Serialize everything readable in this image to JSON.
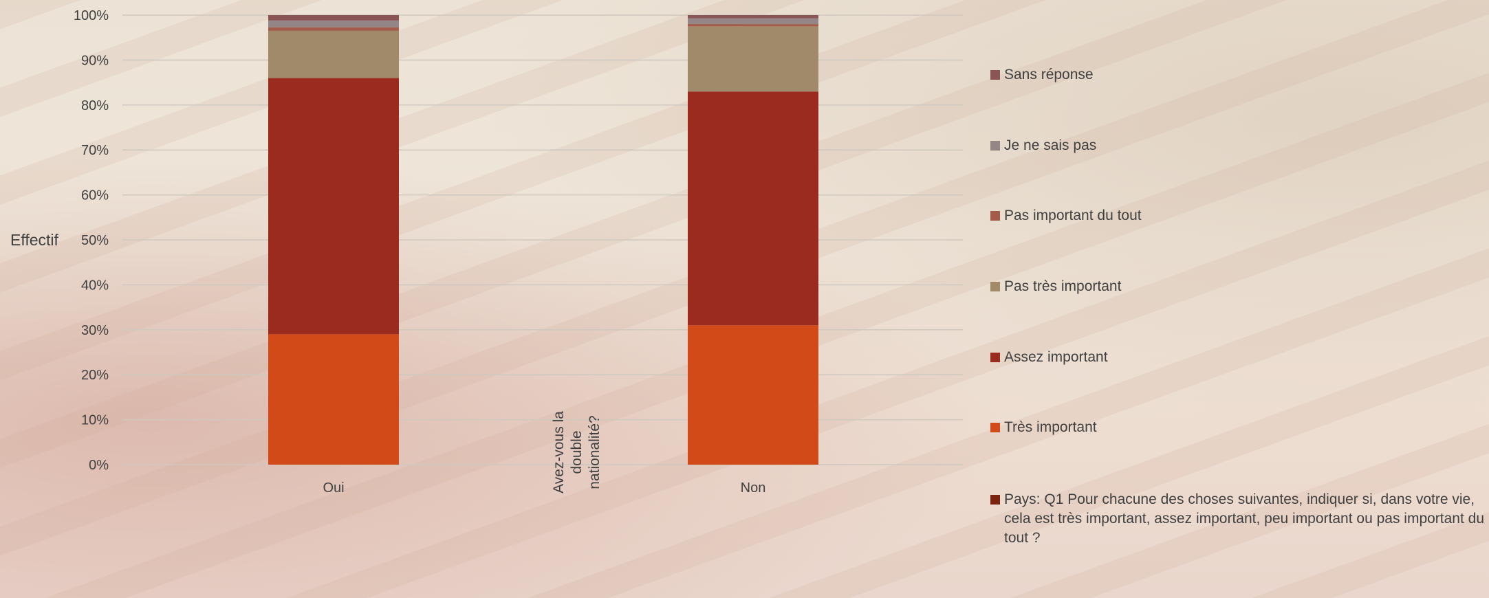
{
  "chart_data": {
    "type": "bar",
    "stacked": true,
    "ylabel": "Effectif",
    "xlabel": "Avez-vous la double nationalité?",
    "categories": [
      "Oui",
      "Non"
    ],
    "y_ticks": [
      "0%",
      "10%",
      "20%",
      "30%",
      "40%",
      "50%",
      "60%",
      "70%",
      "80%",
      "90%",
      "100%"
    ],
    "ylim": [
      0,
      100
    ],
    "grid": true,
    "legend_position": "right",
    "series": [
      {
        "name": "Très important",
        "color": "#d24a18",
        "values": [
          29,
          31
        ]
      },
      {
        "name": "Assez important",
        "color": "#9b2a1f",
        "values": [
          57,
          52
        ]
      },
      {
        "name": "Pas très important",
        "color": "#a08a6a",
        "values": [
          10.5,
          14.5
        ]
      },
      {
        "name": "Pas important du tout",
        "color": "#a35c4a",
        "values": [
          0.8,
          0.5
        ]
      },
      {
        "name": "Je ne sais pas",
        "color": "#948686",
        "values": [
          1.5,
          1.3
        ]
      },
      {
        "name": "Sans réponse",
        "color": "#8a5555",
        "values": [
          1.2,
          0.7
        ]
      }
    ],
    "legend_items": [
      {
        "label": "Sans réponse",
        "color": "#8a5555"
      },
      {
        "label": "Je ne sais pas",
        "color": "#948686"
      },
      {
        "label": "Pas important du tout",
        "color": "#a35c4a"
      },
      {
        "label": "Pas très important",
        "color": "#a08a6a"
      },
      {
        "label": "Assez important",
        "color": "#9b2a1f"
      },
      {
        "label": "Très important",
        "color": "#d24a18"
      },
      {
        "label": "Pays: Q1 Pour chacune des choses suivantes, indiquer si, dans votre vie, cela est très important, assez important, peu important ou pas important du tout ?",
        "color": "#7a2410"
      }
    ]
  }
}
